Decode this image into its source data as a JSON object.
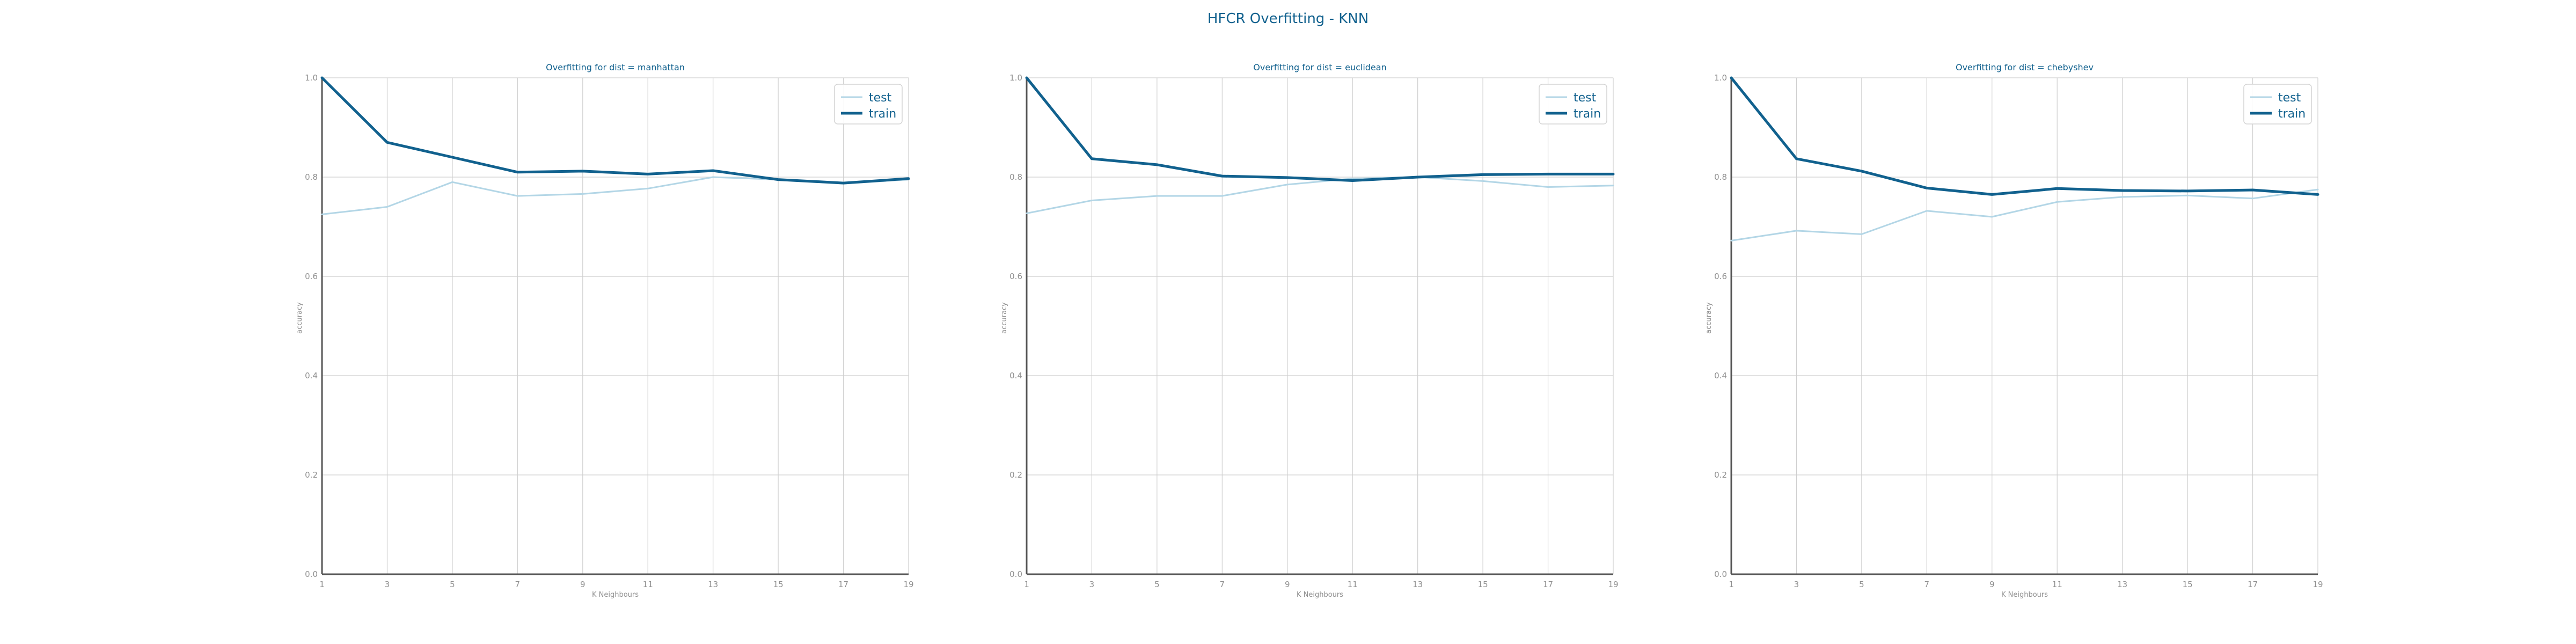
{
  "figure": {
    "title": "HFCR Overfitting - KNN"
  },
  "colors": {
    "test": "#b3d6e6",
    "train": "#11618e",
    "text": "#11618e",
    "tick": "#8f8f8f",
    "grid": "#cfcfcf",
    "axis": "#555555"
  },
  "chart_data": [
    {
      "type": "line",
      "title": "Overfitting for dist = manhattan",
      "xlabel": "K Neighbours",
      "ylabel": "accuracy",
      "x": [
        1,
        3,
        5,
        7,
        9,
        11,
        13,
        15,
        17,
        19
      ],
      "ylim": [
        0.0,
        1.0
      ],
      "yticks": [
        "0.0",
        "0.2",
        "0.4",
        "0.6",
        "0.8",
        "1.0"
      ],
      "grid": true,
      "legend": "top-right",
      "series": [
        {
          "name": "test",
          "values": [
            0.725,
            0.74,
            0.79,
            0.762,
            0.766,
            0.777,
            0.8,
            0.795,
            0.787,
            0.795
          ]
        },
        {
          "name": "train",
          "values": [
            1.0,
            0.87,
            0.84,
            0.81,
            0.812,
            0.806,
            0.813,
            0.795,
            0.788,
            0.797
          ]
        }
      ]
    },
    {
      "type": "line",
      "title": "Overfitting for dist = euclidean",
      "xlabel": "K Neighbours",
      "ylabel": "accuracy",
      "x": [
        1,
        3,
        5,
        7,
        9,
        11,
        13,
        15,
        17,
        19
      ],
      "ylim": [
        0.0,
        1.0
      ],
      "yticks": [
        "0.0",
        "0.2",
        "0.4",
        "0.6",
        "0.8",
        "1.0"
      ],
      "grid": true,
      "legend": "top-right",
      "series": [
        {
          "name": "test",
          "values": [
            0.727,
            0.753,
            0.762,
            0.762,
            0.785,
            0.797,
            0.8,
            0.792,
            0.78,
            0.783
          ]
        },
        {
          "name": "train",
          "values": [
            1.0,
            0.837,
            0.825,
            0.802,
            0.799,
            0.793,
            0.8,
            0.805,
            0.806,
            0.806
          ]
        }
      ]
    },
    {
      "type": "line",
      "title": "Overfitting for dist = chebyshev",
      "xlabel": "K Neighbours",
      "ylabel": "accuracy",
      "x": [
        1,
        3,
        5,
        7,
        9,
        11,
        13,
        15,
        17,
        19
      ],
      "ylim": [
        0.0,
        1.0
      ],
      "yticks": [
        "0.0",
        "0.2",
        "0.4",
        "0.6",
        "0.8",
        "1.0"
      ],
      "grid": true,
      "legend": "top-right",
      "series": [
        {
          "name": "test",
          "values": [
            0.672,
            0.692,
            0.685,
            0.732,
            0.72,
            0.75,
            0.76,
            0.763,
            0.757,
            0.775
          ]
        },
        {
          "name": "train",
          "values": [
            1.0,
            0.837,
            0.812,
            0.778,
            0.765,
            0.777,
            0.773,
            0.772,
            0.774,
            0.765
          ]
        }
      ]
    }
  ]
}
